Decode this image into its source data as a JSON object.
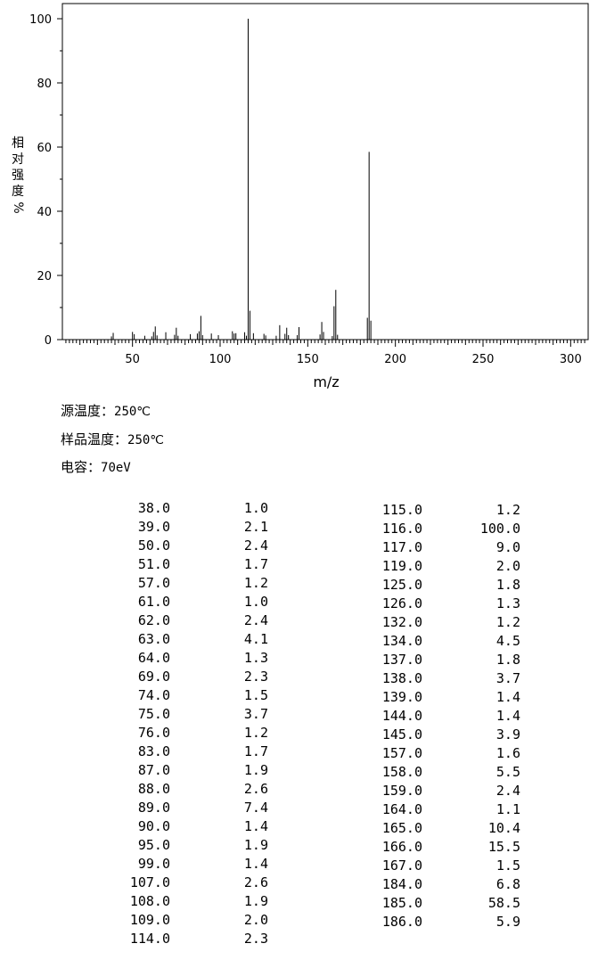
{
  "chart_data": {
    "type": "bar",
    "xlabel": "m/z",
    "ylabel_chars": [
      "相",
      "对",
      "强",
      "度",
      "%"
    ],
    "xlim": [
      10,
      310
    ],
    "ylim": [
      0,
      100
    ],
    "xticks": [
      50,
      100,
      150,
      200,
      250,
      300
    ],
    "yticks": [
      0,
      20,
      40,
      60,
      80,
      100
    ],
    "peaks": [
      [
        38.0,
        1.0
      ],
      [
        39.0,
        2.1
      ],
      [
        50.0,
        2.4
      ],
      [
        51.0,
        1.7
      ],
      [
        57.0,
        1.2
      ],
      [
        61.0,
        1.0
      ],
      [
        62.0,
        2.4
      ],
      [
        63.0,
        4.1
      ],
      [
        64.0,
        1.3
      ],
      [
        69.0,
        2.3
      ],
      [
        74.0,
        1.5
      ],
      [
        75.0,
        3.7
      ],
      [
        76.0,
        1.2
      ],
      [
        83.0,
        1.7
      ],
      [
        87.0,
        1.9
      ],
      [
        88.0,
        2.6
      ],
      [
        89.0,
        7.4
      ],
      [
        90.0,
        1.4
      ],
      [
        95.0,
        1.9
      ],
      [
        99.0,
        1.4
      ],
      [
        107.0,
        2.6
      ],
      [
        108.0,
        1.9
      ],
      [
        109.0,
        2.0
      ],
      [
        114.0,
        2.3
      ],
      [
        115.0,
        1.2
      ],
      [
        116.0,
        100.0
      ],
      [
        117.0,
        9.0
      ],
      [
        119.0,
        2.0
      ],
      [
        125.0,
        1.8
      ],
      [
        126.0,
        1.3
      ],
      [
        132.0,
        1.2
      ],
      [
        134.0,
        4.5
      ],
      [
        137.0,
        1.8
      ],
      [
        138.0,
        3.7
      ],
      [
        139.0,
        1.4
      ],
      [
        144.0,
        1.4
      ],
      [
        145.0,
        3.9
      ],
      [
        157.0,
        1.6
      ],
      [
        158.0,
        5.5
      ],
      [
        159.0,
        2.4
      ],
      [
        164.0,
        1.1
      ],
      [
        165.0,
        10.4
      ],
      [
        166.0,
        15.5
      ],
      [
        167.0,
        1.5
      ],
      [
        184.0,
        6.8
      ],
      [
        185.0,
        58.5
      ],
      [
        186.0,
        5.9
      ]
    ]
  },
  "conditions": [
    {
      "label": "源温度：",
      "value": "250℃"
    },
    {
      "label": "样品温度：",
      "value": "250℃"
    },
    {
      "label": "电容：",
      "value": "70eV"
    }
  ],
  "table_left": [
    [
      "38.0",
      "1.0"
    ],
    [
      "39.0",
      "2.1"
    ],
    [
      "50.0",
      "2.4"
    ],
    [
      "51.0",
      "1.7"
    ],
    [
      "57.0",
      "1.2"
    ],
    [
      "61.0",
      "1.0"
    ],
    [
      "62.0",
      "2.4"
    ],
    [
      "63.0",
      "4.1"
    ],
    [
      "64.0",
      "1.3"
    ],
    [
      "69.0",
      "2.3"
    ],
    [
      "74.0",
      "1.5"
    ],
    [
      "75.0",
      "3.7"
    ],
    [
      "76.0",
      "1.2"
    ],
    [
      "83.0",
      "1.7"
    ],
    [
      "87.0",
      "1.9"
    ],
    [
      "88.0",
      "2.6"
    ],
    [
      "89.0",
      "7.4"
    ],
    [
      "90.0",
      "1.4"
    ],
    [
      "95.0",
      "1.9"
    ],
    [
      "99.0",
      "1.4"
    ],
    [
      "107.0",
      "2.6"
    ],
    [
      "108.0",
      "1.9"
    ],
    [
      "109.0",
      "2.0"
    ],
    [
      "114.0",
      "2.3"
    ]
  ],
  "table_right": [
    [
      "115.0",
      "1.2"
    ],
    [
      "116.0",
      "100.0"
    ],
    [
      "117.0",
      "9.0"
    ],
    [
      "119.0",
      "2.0"
    ],
    [
      "125.0",
      "1.8"
    ],
    [
      "126.0",
      "1.3"
    ],
    [
      "132.0",
      "1.2"
    ],
    [
      "134.0",
      "4.5"
    ],
    [
      "137.0",
      "1.8"
    ],
    [
      "138.0",
      "3.7"
    ],
    [
      "139.0",
      "1.4"
    ],
    [
      "144.0",
      "1.4"
    ],
    [
      "145.0",
      "3.9"
    ],
    [
      "157.0",
      "1.6"
    ],
    [
      "158.0",
      "5.5"
    ],
    [
      "159.0",
      "2.4"
    ],
    [
      "164.0",
      "1.1"
    ],
    [
      "165.0",
      "10.4"
    ],
    [
      "166.0",
      "15.5"
    ],
    [
      "167.0",
      "1.5"
    ],
    [
      "184.0",
      "6.8"
    ],
    [
      "185.0",
      "58.5"
    ],
    [
      "186.0",
      "5.9"
    ]
  ]
}
